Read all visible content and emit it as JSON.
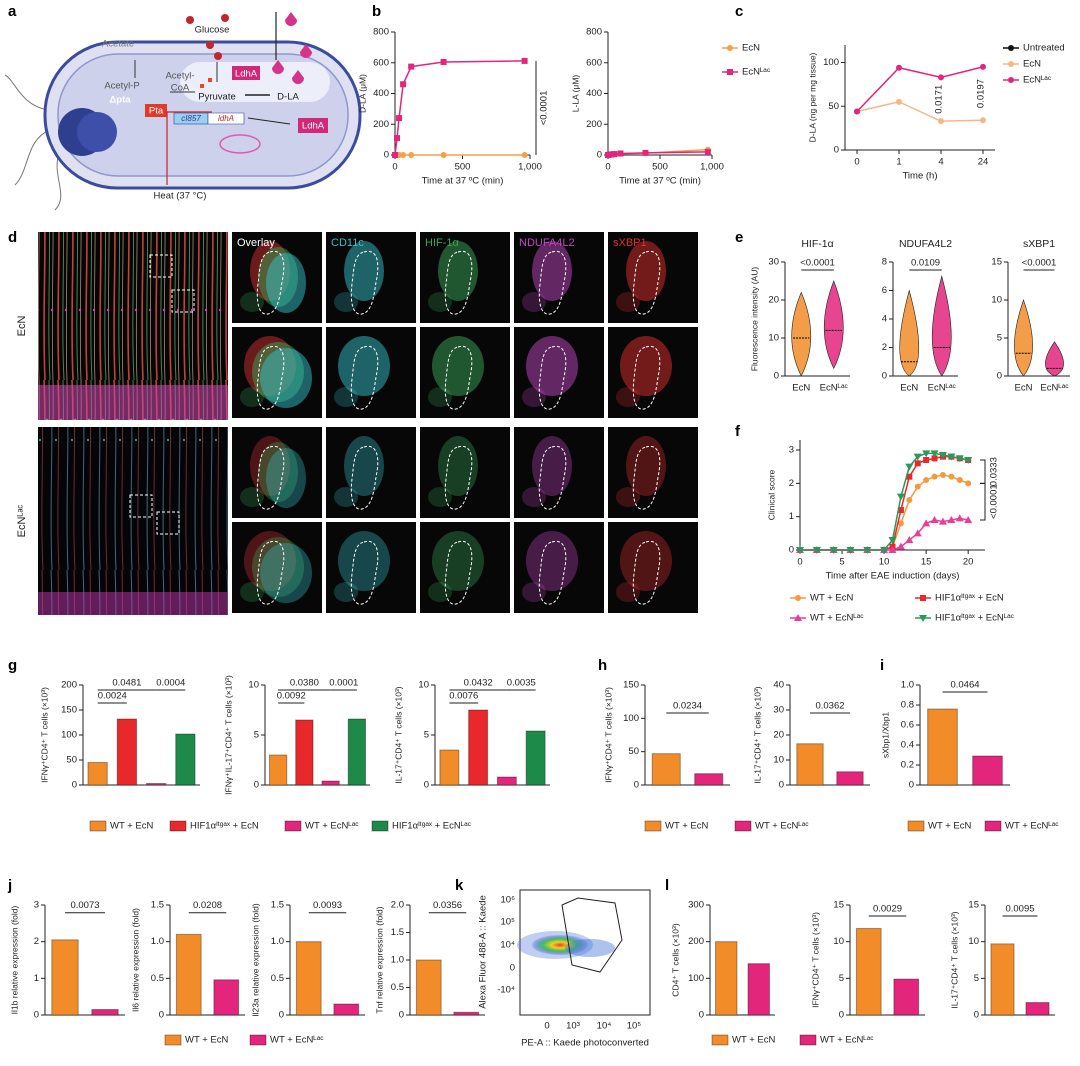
{
  "panel_labels": [
    "a",
    "b",
    "c",
    "d",
    "e",
    "f",
    "g",
    "h",
    "i",
    "j",
    "k",
    "l"
  ],
  "diagram": {
    "glucose": "Glucose",
    "acetate": "Acetate",
    "acetyl_p": "Acetyl-P",
    "pta_deletion": "Δpta",
    "acetyl_coa": [
      "Acetyl-",
      "CoA"
    ],
    "pta": "Pta",
    "pyruvate": "Pyruvate",
    "ldha_enzyme": "LdhA",
    "ldha_secreted": "LdhA",
    "d_la": "D-LA",
    "promoter": "cI857",
    "gene": "ldhA",
    "heat": "Heat (37 °C)"
  },
  "micrographs": {
    "channels": [
      "Overlay",
      "CD11c",
      "HIF-1α",
      "NDUFA4L2",
      "sXBP1"
    ],
    "rows": [
      "EcN",
      "EcNᴸᵃᶜ"
    ]
  },
  "flow": {
    "ylabel": "Alexa Fluor 488-A :: Kaede",
    "xlabel": "PE-A :: Kaede photoconverted",
    "yticks": [
      "10⁶",
      "10⁵",
      "10⁴",
      "0",
      "-10⁴"
    ],
    "xticks": [
      "0",
      "10³",
      "10⁴",
      "10⁵"
    ]
  },
  "chart_data": [
    {
      "type": "line",
      "x": [
        0,
        15,
        30,
        60,
        120,
        360,
        960
      ],
      "xlim": [
        0,
        1000
      ],
      "xticks": [
        0,
        500,
        {
          "value": 1000,
          "label": "1,000"
        }
      ],
      "xlabel": "Time at 37 ºC (min)",
      "panels": [
        {
          "ylabel": "D-LA (μM)",
          "ylim": [
            0,
            800
          ],
          "yticks": [
            0,
            200,
            400,
            600,
            800
          ],
          "annotations": [
            "<0.0001"
          ]
        },
        {
          "ylabel": "L-LA (μM)",
          "ylim": [
            0,
            800
          ],
          "yticks": [
            0,
            200,
            400,
            600,
            800
          ]
        }
      ],
      "series": [
        {
          "name": "EcN",
          "color": "#f5a04a",
          "marker": "circle",
          "values": [
            [
              0,
              0,
              0,
              0,
              0,
              0,
              0
            ],
            [
              0,
              2,
              4,
              6,
              8,
              12,
              35
            ]
          ]
        },
        {
          "name": "EcNᴸᵃᶜ",
          "color": "#e4257c",
          "marker": "square",
          "values": [
            [
              0,
              110,
              240,
              460,
              575,
              605,
              612
            ],
            [
              0,
              2,
              4,
              6,
              10,
              14,
              20
            ]
          ]
        }
      ]
    },
    {
      "type": "line",
      "categories": [
        "0",
        "1",
        "4",
        "24"
      ],
      "xlabel": "Time (h)",
      "panels": [
        {
          "ylabel": "D-LA (ng per mg tissue)",
          "ylim": [
            0,
            120
          ],
          "yticks": [
            0,
            50,
            100
          ],
          "annotations": [
            "0.0171",
            "0.0197"
          ]
        }
      ],
      "series": [
        {
          "name": "Untreated",
          "color": "#111111",
          "marker": "circle",
          "values": [
            [
              44,
              null,
              null,
              null
            ]
          ]
        },
        {
          "name": "EcN",
          "color": "#f3b88a",
          "marker": "circle",
          "values": [
            [
              44,
              55,
              33,
              34
            ]
          ]
        },
        {
          "name": "EcNᴸᵃᶜ",
          "color": "#e4257c",
          "marker": "circle",
          "values": [
            [
              44,
              94,
              83,
              95
            ]
          ]
        }
      ]
    },
    {
      "type": "violin",
      "categories": [
        "EcN",
        "EcNᴸᵃᶜ"
      ],
      "colors": [
        "#f28c28",
        "#e4257c"
      ],
      "panels": [
        {
          "title": "HIF-1α",
          "ylabel": "Fluorescence intensity (AU)",
          "ylim": [
            0,
            30
          ],
          "yticks": [
            0,
            10,
            20,
            30
          ],
          "min": [
            0,
            2
          ],
          "median": [
            10,
            12
          ],
          "max": [
            22,
            25
          ],
          "annotations": [
            "<0.0001"
          ]
        },
        {
          "title": "NDUFA4L2",
          "ylim": [
            0,
            8
          ],
          "yticks": [
            0,
            2,
            4,
            6,
            8
          ],
          "min": [
            0,
            0
          ],
          "median": [
            1,
            2
          ],
          "max": [
            6,
            7
          ],
          "annotations": [
            "0.0109"
          ]
        },
        {
          "title": "sXBP1",
          "ylim": [
            0,
            15
          ],
          "yticks": [
            0,
            5,
            10,
            15
          ],
          "min": [
            0,
            0
          ],
          "median": [
            3,
            1
          ],
          "max": [
            10,
            4.5
          ],
          "annotations": [
            "<0.0001"
          ]
        }
      ]
    },
    {
      "type": "line",
      "x": [
        0,
        2,
        4,
        6,
        8,
        10,
        11,
        12,
        13,
        14,
        15,
        16,
        17,
        18,
        19,
        20
      ],
      "xlim": [
        0,
        22
      ],
      "xticks": [
        0,
        5,
        10,
        15,
        20
      ],
      "xlabel": "Time after EAE induction (days)",
      "panels": [
        {
          "ylabel": "Clinical score",
          "ylim": [
            0,
            3.3
          ],
          "yticks": [
            0,
            1,
            2,
            3
          ],
          "annotations": [
            "0.0333",
            "<0.0001"
          ]
        }
      ],
      "series": [
        {
          "name": "WT + EcN",
          "color": "#f39a3c",
          "marker": "circle",
          "values": [
            [
              0,
              0,
              0,
              0,
              0,
              0,
              0.1,
              0.8,
              1.5,
              1.9,
              2.1,
              2.2,
              2.25,
              2.2,
              2.1,
              2.0
            ]
          ]
        },
        {
          "name": "HIF1αᴵᵗᵍᵃˣ + EcN",
          "color": "#e8282a",
          "marker": "square",
          "values": [
            [
              0,
              0,
              0,
              0,
              0,
              0,
              0.1,
              1.2,
              2.2,
              2.6,
              2.7,
              2.75,
              2.8,
              2.8,
              2.75,
              2.7
            ]
          ]
        },
        {
          "name": "WT + EcNᴸᵃᶜ",
          "color": "#e83e9a",
          "marker": "triangle",
          "values": [
            [
              0,
              0,
              0,
              0,
              0,
              0,
              0,
              0.1,
              0.3,
              0.5,
              0.8,
              0.9,
              0.85,
              0.9,
              0.95,
              0.9
            ]
          ]
        },
        {
          "name": "HIF1αᴵᵗᵍᵃˣ + EcNᴸᵃᶜ",
          "color": "#2a9a5a",
          "marker": "triangle-down",
          "values": [
            [
              0,
              0,
              0,
              0,
              0,
              0,
              0.3,
              1.6,
              2.5,
              2.8,
              2.9,
              2.9,
              2.85,
              2.8,
              2.75,
              2.7
            ]
          ]
        }
      ]
    },
    {
      "type": "bar",
      "panels": [
        {
          "ylabel": "IFNγ⁺CD4⁺ T cells (×10³)",
          "ylim": [
            0,
            200
          ],
          "yticks": [
            0,
            50,
            100,
            150,
            200
          ],
          "annotations": [
            "0.0481",
            "0.0024",
            "0.0004"
          ]
        },
        {
          "ylabel": "IFNγ⁺IL-17⁺CD4⁺ T cells (×10³)",
          "ylim": [
            0,
            10
          ],
          "yticks": [
            0,
            5,
            10
          ],
          "annotations": [
            "0.0380",
            "0.0092",
            "0.0001"
          ]
        },
        {
          "ylabel": "IL-17⁺CD4⁺ T cells (×10³)",
          "ylim": [
            0,
            10
          ],
          "yticks": [
            0,
            5,
            10
          ],
          "annotations": [
            "0.0432",
            "0.0076",
            "0.0035"
          ]
        }
      ],
      "series": [
        {
          "name": "WT + EcN",
          "color": "#f28c28",
          "values": [
            45,
            3,
            3.5
          ]
        },
        {
          "name": "HIF1αᴵᵗᵍᵃˣ + EcN",
          "color": "#e8282a",
          "values": [
            132,
            6.5,
            7.5
          ]
        },
        {
          "name": "WT + EcNᴸᵃᶜ",
          "color": "#e4257c",
          "values": [
            3,
            0.4,
            0.8
          ]
        },
        {
          "name": "HIF1αᴵᵗᵍᵃˣ + EcNᴸᵃᶜ",
          "color": "#1e8a4a",
          "values": [
            102,
            6.6,
            5.4
          ]
        }
      ]
    },
    {
      "type": "bar",
      "panels": [
        {
          "ylabel": "IFNγ⁺CD4⁺ T cells (×10³)",
          "ylim": [
            0,
            150
          ],
          "yticks": [
            0,
            50,
            100,
            150
          ],
          "annotations": [
            "0.0234"
          ]
        },
        {
          "ylabel": "IL-17⁺CD4⁺ T cells (×10³)",
          "ylim": [
            0,
            40
          ],
          "yticks": [
            0,
            10,
            20,
            30,
            40
          ],
          "annotations": [
            "0.0362"
          ]
        }
      ],
      "series": [
        {
          "name": "WT + EcN",
          "color": "#f28c28",
          "values": [
            47,
            16.5
          ]
        },
        {
          "name": "WT + EcNᴸᵃᶜ",
          "color": "#e4257c",
          "values": [
            17,
            5.3
          ]
        }
      ]
    },
    {
      "type": "bar",
      "panels": [
        {
          "ylabel": "sXbp1/Xbp1",
          "ylim": [
            0,
            1
          ],
          "yticks": [
            0,
            0.2,
            0.4,
            0.6,
            0.8,
            {
              "value": 1,
              "label": "1.0"
            }
          ],
          "annotations": [
            "0.0464"
          ]
        }
      ],
      "series": [
        {
          "name": "WT + EcN",
          "color": "#f28c28",
          "values": [
            0.76
          ]
        },
        {
          "name": "WT + EcNᴸᵃᶜ",
          "color": "#e4257c",
          "values": [
            0.29
          ]
        }
      ]
    },
    {
      "type": "bar",
      "panels": [
        {
          "ylabel": "Il1b relative expression (fold)",
          "ylim": [
            0,
            3
          ],
          "yticks": [
            0,
            1,
            2,
            3
          ],
          "annotations": [
            "0.0073"
          ]
        },
        {
          "ylabel": "Il6 relative expression (fold)",
          "ylim": [
            0,
            1.5
          ],
          "yticks": [
            0,
            0.5,
            {
              "value": 1,
              "label": "1.0"
            },
            1.5
          ],
          "annotations": [
            "0.0208"
          ]
        },
        {
          "ylabel": "Il23a relative expression (fold)",
          "ylim": [
            0,
            1.5
          ],
          "yticks": [
            0,
            0.5,
            {
              "value": 1,
              "label": "1.0"
            },
            1.5
          ],
          "annotations": [
            "0.0093"
          ]
        },
        {
          "ylabel": "Tnf relative expression (fold)",
          "ylim": [
            0,
            2
          ],
          "yticks": [
            0,
            0.5,
            {
              "value": 1,
              "label": "1.0"
            },
            1.5,
            {
              "value": 2,
              "label": "2.0"
            }
          ],
          "annotations": [
            "0.0356"
          ]
        }
      ],
      "series": [
        {
          "name": "WT + EcN",
          "color": "#f28c28",
          "values": [
            2.05,
            1.1,
            1.0,
            1.0
          ]
        },
        {
          "name": "WT + EcNᴸᵃᶜ",
          "color": "#e4257c",
          "values": [
            0.15,
            0.48,
            0.15,
            0.05
          ]
        }
      ]
    },
    {
      "type": "bar",
      "panels": [
        {
          "ylabel": "CD4⁺ T cells (×10³)",
          "ylim": [
            0,
            300
          ],
          "yticks": [
            0,
            100,
            200,
            300
          ]
        },
        {
          "ylabel": "IFNγ⁺CD4⁺ T cells (×10³)",
          "ylim": [
            0,
            15
          ],
          "yticks": [
            0,
            5,
            10,
            15
          ],
          "annotations": [
            "0.0029"
          ]
        },
        {
          "ylabel": "IL-17⁺CD4⁺ T cells (×10³)",
          "ylim": [
            0,
            15
          ],
          "yticks": [
            0,
            5,
            10,
            15
          ],
          "annotations": [
            "0.0095"
          ]
        }
      ],
      "series": [
        {
          "name": "WT + EcN",
          "color": "#f28c28",
          "values": [
            200,
            11.8,
            9.7
          ]
        },
        {
          "name": "WT + EcNᴸᵃᶜ",
          "color": "#e4257c",
          "values": [
            140,
            4.9,
            1.7
          ]
        }
      ]
    }
  ]
}
